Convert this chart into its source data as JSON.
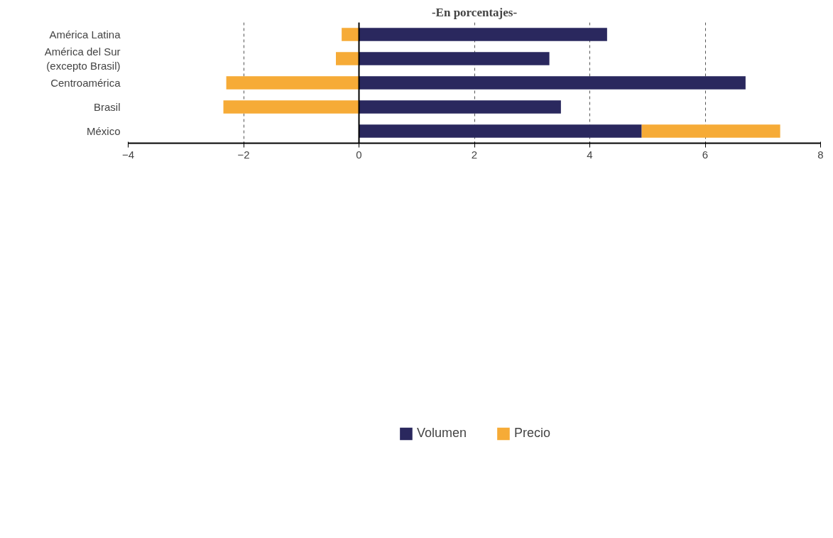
{
  "chart_data": {
    "type": "bar",
    "orientation": "horizontal",
    "stacked": true,
    "title": "-En porcentajes-",
    "categories": [
      "América Latina",
      "América del Sur\n(excepto Brasil)",
      "Centroamérica",
      "Brasil",
      "México"
    ],
    "series": [
      {
        "name": "Volumen",
        "color": "#2a285e",
        "values": [
          4.3,
          3.3,
          6.7,
          3.5,
          4.9
        ]
      },
      {
        "name": "Precio",
        "color": "#f6ab37",
        "values": [
          -0.3,
          -0.4,
          -2.3,
          -2.35,
          2.4
        ]
      }
    ],
    "xlim": [
      -4,
      8
    ],
    "xticks": [
      -4,
      -2,
      0,
      2,
      4,
      6,
      8
    ],
    "grid": "x",
    "legend": "bottom"
  }
}
